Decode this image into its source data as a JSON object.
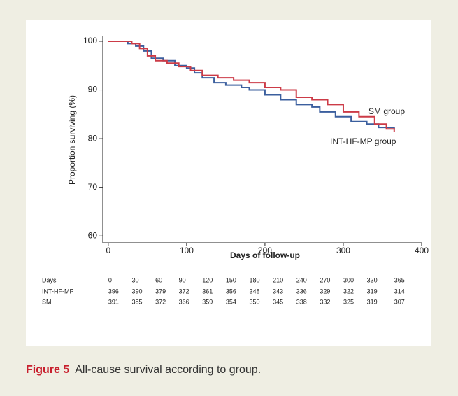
{
  "chart_data": {
    "type": "step",
    "y_label": "Proportion surviving (%)",
    "x_label": "Days of follow-up",
    "xlim": [
      -7,
      400
    ],
    "ylim": [
      58.6,
      101
    ],
    "xticks": [
      0,
      100,
      200,
      300,
      400
    ],
    "yticks": [
      60,
      70,
      80,
      90,
      100
    ],
    "series": [
      {
        "name": "INT-HF-MP group",
        "color": "#3b5f9e",
        "x": [
          0,
          15,
          25,
          35,
          45,
          55,
          70,
          85,
          100,
          110,
          120,
          135,
          150,
          170,
          180,
          200,
          220,
          240,
          260,
          270,
          290,
          310,
          330,
          345,
          365
        ],
        "values": [
          100,
          100,
          99.5,
          99,
          98,
          96.5,
          96,
          95,
          94.5,
          93.5,
          92.5,
          91.5,
          91,
          90.5,
          90,
          89,
          88,
          87,
          86.5,
          85.5,
          84.5,
          83.5,
          83,
          82.3,
          82
        ]
      },
      {
        "name": "SM group",
        "color": "#cc3b47",
        "x": [
          0,
          20,
          30,
          40,
          50,
          60,
          75,
          90,
          105,
          120,
          140,
          160,
          180,
          200,
          220,
          240,
          260,
          280,
          300,
          320,
          340,
          355,
          365
        ],
        "values": [
          100,
          100,
          99.5,
          98.5,
          97,
          96,
          95.5,
          94.8,
          94,
          93,
          92.5,
          92,
          91.5,
          90.5,
          90,
          88.5,
          88,
          87,
          85.5,
          84.5,
          83,
          82,
          81.4
        ]
      }
    ],
    "risk_table": [
      {
        "label": "Days",
        "values": [
          0,
          30,
          60,
          90,
          120,
          150,
          180,
          210,
          240,
          270,
          300,
          330,
          365
        ]
      },
      {
        "label": "INT-HF-MP",
        "values": [
          396,
          390,
          379,
          372,
          361,
          356,
          348,
          343,
          336,
          329,
          322,
          319,
          314
        ]
      },
      {
        "label": "SM",
        "values": [
          391,
          385,
          372,
          366,
          359,
          354,
          350,
          345,
          338,
          332,
          325,
          319,
          307
        ]
      }
    ]
  },
  "caption": {
    "label": "Figure 5",
    "text": "All-cause survival according to group."
  }
}
